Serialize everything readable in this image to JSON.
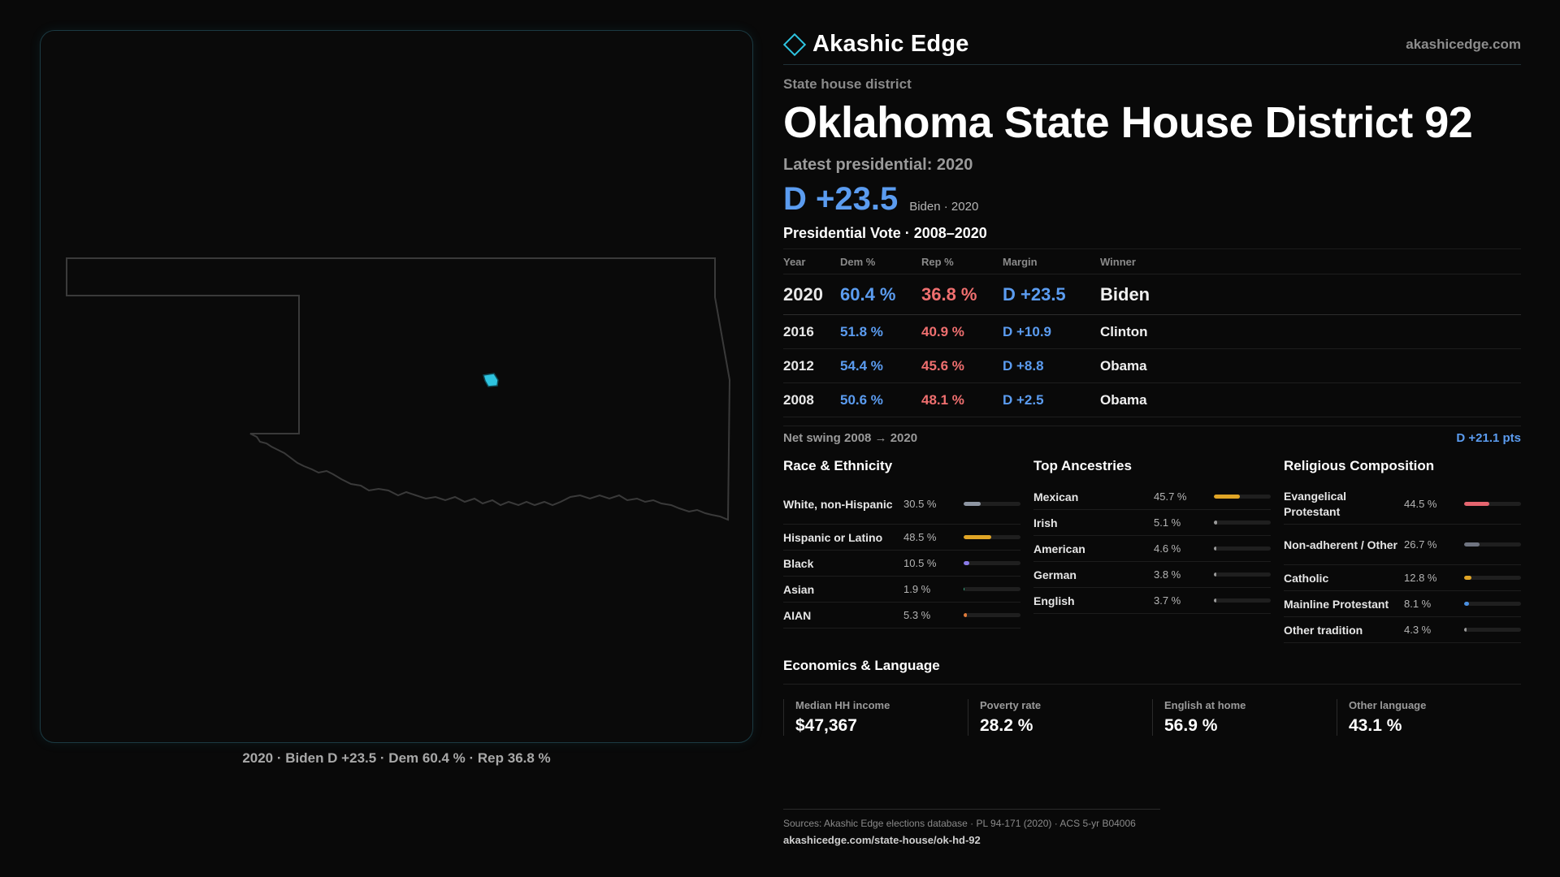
{
  "brand": {
    "name": "Akashic Edge",
    "site": "akashicedge.com",
    "logo_icon": "diamond-outline-icon",
    "accent": "#2ec4e0"
  },
  "header": {
    "kicker": "State house district",
    "title": "Oklahoma State House District 92",
    "latest": "Latest presidential: 2020",
    "margin": "D +23.5",
    "margin_sub": "Biden · 2020"
  },
  "map": {
    "caption": "2020 · Biden D +23.5 · Dem 60.4 % · Rep 36.8 %",
    "district_color": "#2ec4e0"
  },
  "results": {
    "title": "Presidential Vote · 2008–2020",
    "headers": {
      "year": "Year",
      "dem": "Dem %",
      "rep": "Rep %",
      "margin": "Margin",
      "winner": "Winner"
    },
    "rows": [
      {
        "year": "2020",
        "dem": "60.4 %",
        "rep": "36.8 %",
        "margin": "D +23.5",
        "winner": "Biden"
      },
      {
        "year": "2016",
        "dem": "51.8 %",
        "rep": "40.9 %",
        "margin": "D +10.9",
        "winner": "Clinton"
      },
      {
        "year": "2012",
        "dem": "54.4 %",
        "rep": "45.6 %",
        "margin": "D +8.8",
        "winner": "Obama"
      },
      {
        "year": "2008",
        "dem": "50.6 %",
        "rep": "48.1 %",
        "margin": "D +2.5",
        "winner": "Obama"
      }
    ],
    "swing_label": "Net swing 2008 → 2020",
    "swing_value": "D +21.1 pts"
  },
  "race": {
    "title": "Race & Ethnicity",
    "items": [
      {
        "label": "White, non-Hispanic",
        "value": "30.5 %",
        "pct": 30.5,
        "color": "#8e96a3"
      },
      {
        "label": "Hispanic or Latino",
        "value": "48.5 %",
        "pct": 48.5,
        "color": "#e0a526"
      },
      {
        "label": "Black",
        "value": "10.5 %",
        "pct": 10.5,
        "color": "#8a7ae8"
      },
      {
        "label": "Asian",
        "value": "1.9 %",
        "pct": 1.9,
        "color": "#38b58a"
      },
      {
        "label": "AIAN",
        "value": "5.3 %",
        "pct": 5.3,
        "color": "#e07b3a"
      }
    ]
  },
  "ancestry": {
    "title": "Top Ancestries",
    "items": [
      {
        "label": "Mexican",
        "value": "45.7 %",
        "pct": 45.7,
        "color": "#e0a526"
      },
      {
        "label": "Irish",
        "value": "5.1 %",
        "pct": 5.1,
        "color": "#9a9a9a"
      },
      {
        "label": "American",
        "value": "4.6 %",
        "pct": 4.6,
        "color": "#9a9a9a"
      },
      {
        "label": "German",
        "value": "3.8 %",
        "pct": 3.8,
        "color": "#9a9a9a"
      },
      {
        "label": "English",
        "value": "3.7 %",
        "pct": 3.7,
        "color": "#9a9a9a"
      }
    ]
  },
  "religion": {
    "title": "Religious Composition",
    "items": [
      {
        "label": "Evangelical Protestant",
        "value": "44.5 %",
        "pct": 44.5,
        "color": "#e5656f"
      },
      {
        "label": "Non-adherent / Other",
        "value": "26.7 %",
        "pct": 26.7,
        "color": "#6f7480"
      },
      {
        "label": "Catholic",
        "value": "12.8 %",
        "pct": 12.8,
        "color": "#e0a526"
      },
      {
        "label": "Mainline Protestant",
        "value": "8.1 %",
        "pct": 8.1,
        "color": "#4a90e2"
      },
      {
        "label": "Other tradition",
        "value": "4.3 %",
        "pct": 4.3,
        "color": "#9a9a9a"
      }
    ]
  },
  "economics": {
    "title": "Economics & Language",
    "stats": [
      {
        "label": "Median HH income",
        "value": "$47,367"
      },
      {
        "label": "Poverty rate",
        "value": "28.2 %"
      },
      {
        "label": "English at home",
        "value": "56.9 %"
      },
      {
        "label": "Other language",
        "value": "43.1 %"
      }
    ]
  },
  "sources": {
    "text": "Sources: Akashic Edge elections database · PL 94-171 (2020) · ACS 5-yr B04006",
    "link": "akashicedge.com/state-house/ok-hd-92"
  }
}
